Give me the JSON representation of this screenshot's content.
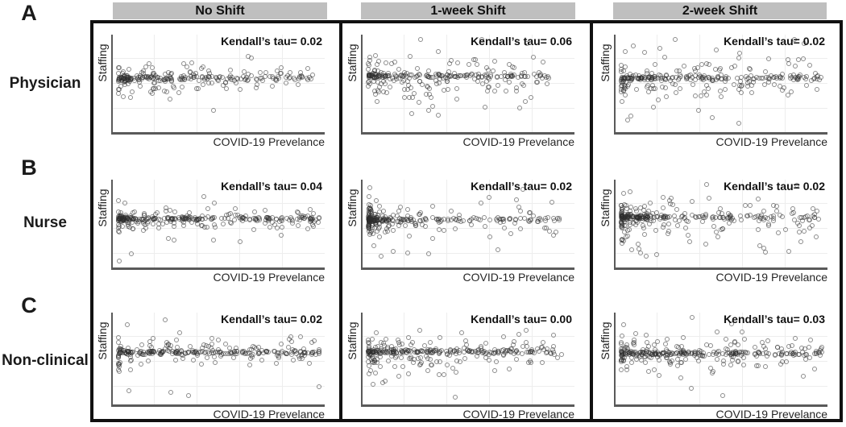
{
  "figure": {
    "panel_letters": [
      "A",
      "B",
      "C"
    ],
    "row_labels": [
      "Physician",
      "Nurse",
      "Non-clinical"
    ],
    "column_headers": [
      "No Shift",
      "1-week Shift",
      "2-week Shift"
    ],
    "xlabel": "COVID-19 Prevelance",
    "ylabel": "Staffing"
  },
  "colors": {
    "header_bg": "#bfbfbf",
    "frame": "#111111",
    "axis": "#5a5a5a",
    "point_stroke": "rgba(45,45,45,0.55)",
    "grid": "#ededed"
  },
  "chart_data": {
    "type": "scatter",
    "note": "3x3 grid of jittered scatter plots; axes are unlabeled qualitative scales (no tick values shown). Point clouds are dense horizontal bands; distributions below are visual estimates.",
    "xlabel": "COVID-19 Prevelance",
    "ylabel": "Staffing",
    "panels": [
      {
        "panel": "A",
        "row_label": "Physician",
        "column": "No Shift",
        "kendalls_tau": 0.02,
        "tau_label": "Kendall’s tau= 0.02",
        "xlabel": "COVID-19 Prevelance",
        "ylabel": "Staffing",
        "scatter": {
          "seed": 11,
          "n": 250,
          "x_pow": 1.5,
          "x_max": 0.95,
          "band_y": 0.44,
          "band_share": 0.5,
          "y_sigma": 0.075,
          "down_shift": 0,
          "edge_stack": 6,
          "extra_points": [
            [
              0.47,
              0.8
            ],
            [
              0.3,
              0.6
            ],
            [
              0.6,
              0.57
            ],
            [
              0.68,
              0.55
            ]
          ]
        }
      },
      {
        "panel": "A",
        "row_label": "Physician",
        "column": "1-week Shift",
        "kendalls_tau": 0.06,
        "tau_label": "Kendall’s tau= 0.06",
        "xlabel": "COVID-19 Prevelance",
        "ylabel": "Staffing",
        "scatter": {
          "seed": 22,
          "n": 270,
          "x_pow": 1.55,
          "x_max": 0.88,
          "band_y": 0.42,
          "band_share": 0.45,
          "y_sigma": 0.11,
          "down_shift": 0.04,
          "edge_stack": 4,
          "extra_points": [
            [
              0.78,
              0.06
            ],
            [
              0.35,
              0.85
            ],
            [
              0.3,
              0.8
            ],
            [
              0.22,
              0.83
            ]
          ]
        }
      },
      {
        "panel": "A",
        "row_label": "Physician",
        "column": "2-week Shift",
        "kendalls_tau": 0.02,
        "tau_label": "Kendall’s tau= 0.02",
        "xlabel": "COVID-19 Prevelance",
        "ylabel": "Staffing",
        "scatter": {
          "seed": 33,
          "n": 280,
          "x_pow": 1.4,
          "x_max": 0.97,
          "band_y": 0.44,
          "band_share": 0.45,
          "y_sigma": 0.12,
          "down_shift": 0,
          "edge_stack": 8,
          "extra_points": [
            [
              0.04,
              0.9
            ],
            [
              0.45,
              0.88
            ]
          ]
        }
      },
      {
        "panel": "B",
        "row_label": "Nurse",
        "column": "No Shift",
        "kendalls_tau": 0.04,
        "tau_label": "Kendall’s tau= 0.04",
        "xlabel": "COVID-19 Prevelance",
        "ylabel": "Staffing",
        "scatter": {
          "seed": 44,
          "n": 290,
          "x_pow": 1.65,
          "x_max": 0.98,
          "band_y": 0.44,
          "band_share": 0.55,
          "y_sigma": 0.065,
          "down_shift": 0,
          "edge_stack": 10,
          "extra_points": [
            [
              0.07,
              0.87
            ],
            [
              0.25,
              0.68
            ],
            [
              0.47,
              0.7
            ],
            [
              0.28,
              0.7
            ],
            [
              0.6,
              0.72
            ],
            [
              0.01,
              0.96
            ],
            [
              0.8,
              0.64
            ]
          ]
        }
      },
      {
        "panel": "B",
        "row_label": "Nurse",
        "column": "1-week Shift",
        "kendalls_tau": 0.02,
        "tau_label": "Kendall’s tau= 0.02",
        "xlabel": "COVID-19 Prevelance",
        "ylabel": "Staffing",
        "scatter": {
          "seed": 55,
          "n": 290,
          "x_pow": 3.0,
          "x_max": 0.93,
          "band_y": 0.45,
          "band_share": 0.5,
          "y_sigma": 0.1,
          "down_shift": 0,
          "edge_stack": 4,
          "extra_points": [
            [
              0.45,
              0.4
            ],
            [
              0.6,
              0.66
            ],
            [
              0.74,
              0.3
            ],
            [
              0.76,
              0.08
            ],
            [
              0.9,
              0.24
            ],
            [
              0.91,
              0.64
            ],
            [
              0.92,
              0.6
            ],
            [
              0.64,
              0.82
            ],
            [
              0.3,
              0.87
            ],
            [
              0.13,
              0.84
            ],
            [
              0.07,
              0.9
            ],
            [
              0.2,
              0.86
            ]
          ]
        }
      },
      {
        "panel": "B",
        "row_label": "Nurse",
        "column": "2-week Shift",
        "kendalls_tau": 0.02,
        "tau_label": "Kendall’s tau= 0.02",
        "xlabel": "COVID-19 Prevelance",
        "ylabel": "Staffing",
        "scatter": {
          "seed": 66,
          "n": 300,
          "x_pow": 2.0,
          "x_max": 0.96,
          "band_y": 0.42,
          "band_share": 0.45,
          "y_sigma": 0.12,
          "down_shift": 0.05,
          "edge_stack": 10,
          "extra_points": [
            [
              0.1,
              0.86
            ],
            [
              0.13,
              0.9
            ],
            [
              0.18,
              0.88
            ],
            [
              0.06,
              0.82
            ],
            [
              0.7,
              0.35
            ],
            [
              0.94,
              0.32
            ]
          ]
        }
      },
      {
        "panel": "C",
        "row_label": "Non-clinical",
        "column": "No Shift",
        "kendalls_tau": 0.02,
        "tau_label": "Kendall’s tau= 0.02",
        "xlabel": "COVID-19 Prevelance",
        "ylabel": "Staffing",
        "scatter": {
          "seed": 77,
          "n": 270,
          "x_pow": 1.55,
          "x_max": 0.98,
          "band_y": 0.43,
          "band_share": 0.55,
          "y_sigma": 0.07,
          "down_shift": 0,
          "edge_stack": 10,
          "extra_points": [
            [
              0.06,
              0.88
            ],
            [
              0.35,
              0.93
            ],
            [
              0.85,
              0.3
            ]
          ]
        }
      },
      {
        "panel": "C",
        "row_label": "Non-clinical",
        "column": "1-week Shift",
        "kendalls_tau": 0.0,
        "tau_label": "Kendall’s tau= 0.00",
        "xlabel": "COVID-19 Prevelance",
        "ylabel": "Staffing",
        "scatter": {
          "seed": 88,
          "n": 300,
          "x_pow": 1.5,
          "x_max": 0.92,
          "band_y": 0.42,
          "band_share": 0.5,
          "y_sigma": 0.1,
          "down_shift": 0.03,
          "edge_stack": 8,
          "extra_points": [
            [
              0.43,
              0.95
            ],
            [
              0.03,
              0.8
            ],
            [
              0.08,
              0.78
            ],
            [
              0.95,
              0.45
            ]
          ]
        }
      },
      {
        "panel": "C",
        "row_label": "Non-clinical",
        "column": "2-week Shift",
        "kendalls_tau": 0.03,
        "tau_label": "Kendall’s tau= 0.03",
        "xlabel": "COVID-19 Prevelance",
        "ylabel": "Staffing",
        "scatter": {
          "seed": 99,
          "n": 310,
          "x_pow": 1.55,
          "x_max": 0.98,
          "band_y": 0.44,
          "band_share": 0.5,
          "y_sigma": 0.11,
          "down_shift": 0,
          "edge_stack": 10,
          "extra_points": [
            [
              0.02,
              0.1
            ],
            [
              0.5,
              0.93
            ],
            [
              0.35,
              0.85
            ],
            [
              0.97,
              0.42
            ]
          ]
        }
      }
    ]
  }
}
